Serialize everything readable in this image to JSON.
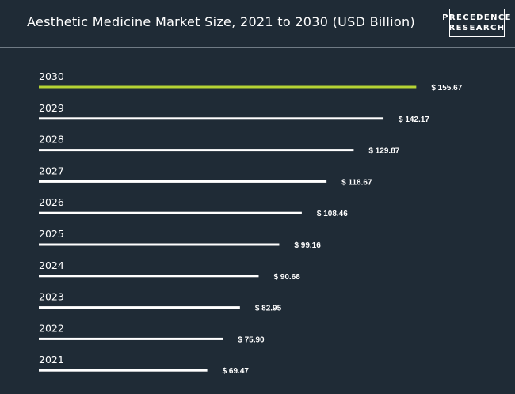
{
  "header": {
    "title": "Aesthetic Medicine Market Size, 2021 to 2030 (USD Billion)",
    "logo_line1": "PRECEDENCE",
    "logo_line2": "RESEARCH"
  },
  "colors": {
    "background": "#1f2b36",
    "bar": "#ffffff",
    "highlight_bar": "#b5d334"
  },
  "chart_data": {
    "type": "bar",
    "orientation": "horizontal",
    "title": "Aesthetic Medicine Market Size, 2021 to 2030 (USD Billion)",
    "categories": [
      "2030",
      "2029",
      "2028",
      "2027",
      "2026",
      "2025",
      "2024",
      "2023",
      "2022",
      "2021"
    ],
    "values": [
      155.67,
      142.17,
      129.87,
      118.67,
      108.46,
      99.16,
      90.68,
      82.95,
      75.9,
      69.47
    ],
    "value_labels": [
      "$ 155.67",
      "$ 142.17",
      "$ 129.87",
      "$ 118.67",
      "$ 108.46",
      "$ 99.16",
      "$ 90.68",
      "$ 82.95",
      "$ 75.90",
      "$ 69.47"
    ],
    "highlight_category": "2030",
    "xlabel": "",
    "ylabel": "",
    "grid": false,
    "legend": "none"
  }
}
